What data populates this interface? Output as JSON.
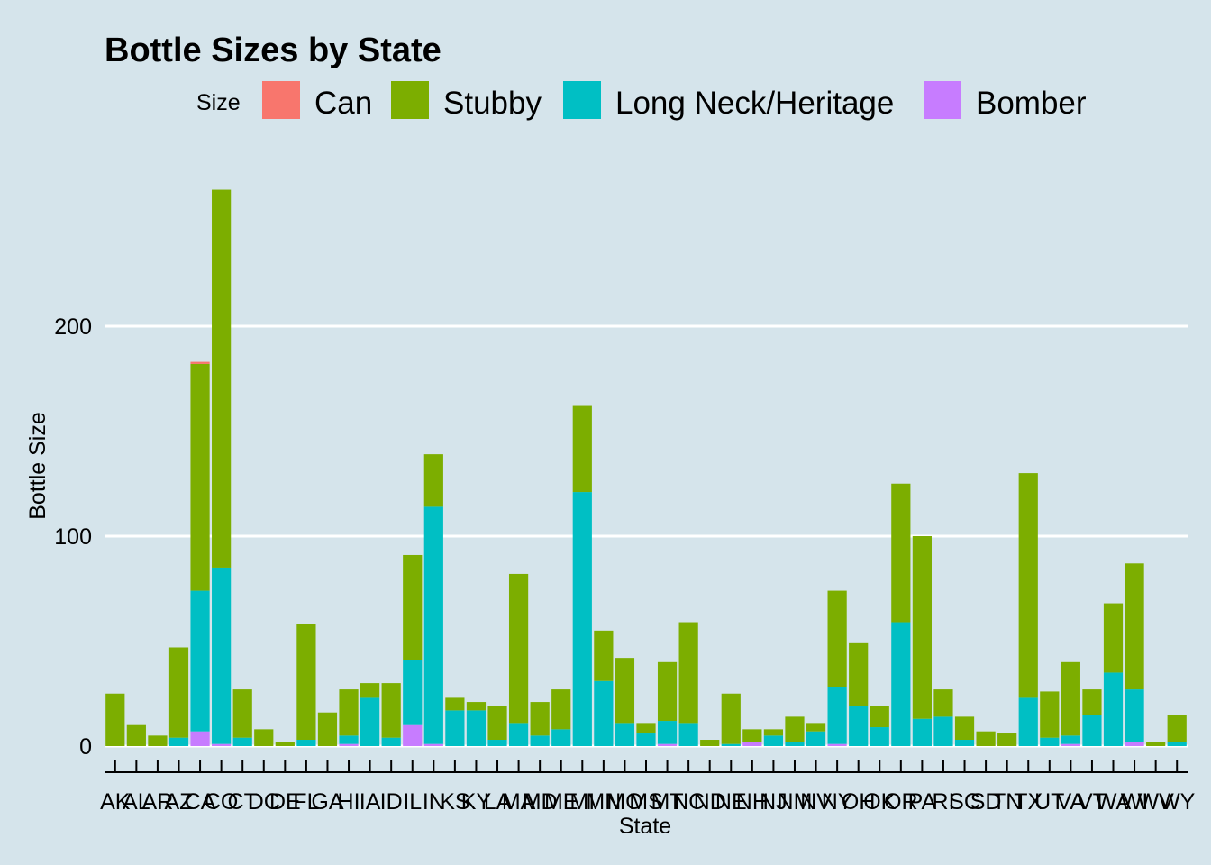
{
  "chart_data": {
    "type": "bar",
    "stacked": true,
    "title": "Bottle Sizes by State",
    "xlabel": "State",
    "ylabel": "Bottle Size",
    "ylim": [
      0,
      265
    ],
    "yticks": [
      0,
      100,
      200
    ],
    "grid": "horizontal-major",
    "legend": {
      "title": "Size",
      "position": "top",
      "entries": [
        "Can",
        "Stubby",
        "Long Neck/Heritage",
        "Bomber"
      ]
    },
    "categories": [
      "AK",
      "AL",
      "AR",
      "AZ",
      "CA",
      "CO",
      "CT",
      "DC",
      "DE",
      "FL",
      "GA",
      "HI",
      "IA",
      "ID",
      "IL",
      "IN",
      "KS",
      "KY",
      "LA",
      "MA",
      "MD",
      "ME",
      "MI",
      "MN",
      "MO",
      "MS",
      "MT",
      "NC",
      "ND",
      "NE",
      "NH",
      "NJ",
      "NM",
      "NV",
      "NY",
      "OH",
      "OK",
      "OR",
      "PA",
      "RI",
      "SC",
      "SD",
      "TN",
      "TX",
      "UT",
      "VA",
      "VT",
      "WA",
      "WI",
      "WV",
      "WY"
    ],
    "series": [
      {
        "name": "Bomber",
        "color": "#C77CFF",
        "values": [
          0,
          0,
          0,
          0,
          7,
          1,
          0,
          0,
          0,
          0,
          0,
          1,
          0,
          0,
          10,
          1,
          0,
          0,
          0,
          0,
          0,
          0,
          0,
          0,
          0,
          0,
          1,
          0,
          0,
          0,
          2,
          0,
          0,
          0,
          1,
          0,
          0,
          0,
          0,
          0,
          0,
          0,
          0,
          0,
          0,
          1,
          0,
          0,
          2,
          0,
          0
        ]
      },
      {
        "name": "Long Neck/Heritage",
        "color": "#00BFC4",
        "values": [
          0,
          0,
          0,
          4,
          67,
          84,
          4,
          0,
          0,
          3,
          0,
          4,
          23,
          4,
          31,
          113,
          17,
          17,
          3,
          11,
          5,
          8,
          121,
          31,
          11,
          6,
          11,
          11,
          0,
          1,
          0,
          5,
          2,
          7,
          27,
          19,
          9,
          59,
          13,
          14,
          3,
          0,
          0,
          23,
          4,
          4,
          15,
          35,
          25,
          0,
          2
        ]
      },
      {
        "name": "Stubby",
        "color": "#7CAE00",
        "values": [
          25,
          10,
          5,
          43,
          108,
          180,
          23,
          8,
          2,
          55,
          16,
          22,
          7,
          26,
          50,
          25,
          6,
          4,
          16,
          71,
          16,
          19,
          41,
          24,
          31,
          5,
          28,
          48,
          3,
          24,
          6,
          3,
          12,
          4,
          46,
          30,
          10,
          66,
          87,
          13,
          11,
          7,
          6,
          107,
          22,
          35,
          12,
          33,
          60,
          2,
          13
        ]
      },
      {
        "name": "Can",
        "color": "#F8766D",
        "values": [
          0,
          0,
          0,
          0,
          1,
          0,
          0,
          0,
          0,
          0,
          0,
          0,
          0,
          0,
          0,
          0,
          0,
          0,
          0,
          0,
          0,
          0,
          0,
          0,
          0,
          0,
          0,
          0,
          0,
          0,
          0,
          0,
          0,
          0,
          0,
          0,
          0,
          0,
          0,
          0,
          0,
          0,
          0,
          0,
          0,
          0,
          0,
          0,
          0,
          0,
          0
        ]
      }
    ]
  }
}
